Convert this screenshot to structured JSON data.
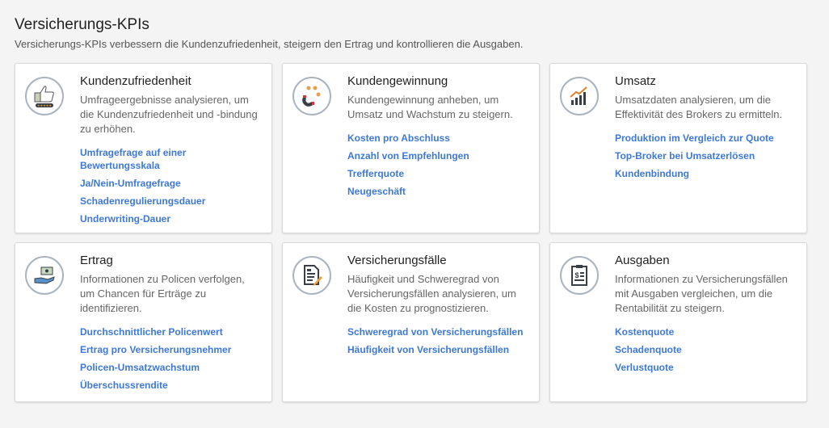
{
  "page": {
    "title": "Versicherungs-KPIs",
    "subtitle": "Versicherungs-KPIs verbessern die Kundenzufriedenheit, steigern den Ertrag und kontrollieren die Ausgaben."
  },
  "colors": {
    "link": "#3d78d8",
    "icon_ring": "#aab4c0",
    "accent": "#f0a030"
  },
  "cards": [
    {
      "icon": "thumbs-up-rating-icon",
      "title": "Kundenzufriedenheit",
      "description": "Umfrageergebnisse analysieren, um die Kundenzufriedenheit und -bindung zu erhöhen.",
      "links": [
        "Umfragefrage auf einer Bewertungsskala",
        "Ja/Nein-Umfragefrage",
        "Schadenregulierungsdauer",
        "Underwriting-Dauer"
      ]
    },
    {
      "icon": "magnet-customers-icon",
      "title": "Kundengewinnung",
      "description": "Kundengewinnung anheben, um Umsatz und Wachstum zu steigern.",
      "links": [
        "Kosten pro Abschluss",
        "Anzahl von Empfehlungen",
        "Trefferquote",
        "Neugeschäft"
      ]
    },
    {
      "icon": "growth-chart-icon",
      "title": "Umsatz",
      "description": "Umsatzdaten analysieren, um die Effektivität des Brokers zu ermitteln.",
      "links": [
        "Produktion im Vergleich zur Quote",
        "Top-Broker bei Umsatzerlösen",
        "Kundenbindung"
      ]
    },
    {
      "icon": "hand-money-icon",
      "title": "Ertrag",
      "description": "Informationen zu Policen verfolgen, um Chancen für Erträge zu identifizieren.",
      "links": [
        "Durchschnittlicher Policenwert",
        "Ertrag pro Versicherungsnehmer",
        "Policen-Umsatzwachstum",
        "Überschussrendite"
      ]
    },
    {
      "icon": "document-pencil-icon",
      "title": "Versicherungsfälle",
      "description": "Häufigkeit und Schweregrad von Versicherungsfällen analysieren, um die Kosten zu prognostizieren.",
      "links": [
        "Schweregrad von Versicherungsfällen",
        "Häufigkeit von Versicherungsfällen"
      ]
    },
    {
      "icon": "clipboard-dollar-icon",
      "title": "Ausgaben",
      "description": "Informationen zu Versicherungsfällen mit Ausgaben vergleichen, um die Rentabilität zu steigern.",
      "links": [
        "Kostenquote",
        "Schadenquote",
        "Verlustquote"
      ]
    }
  ]
}
